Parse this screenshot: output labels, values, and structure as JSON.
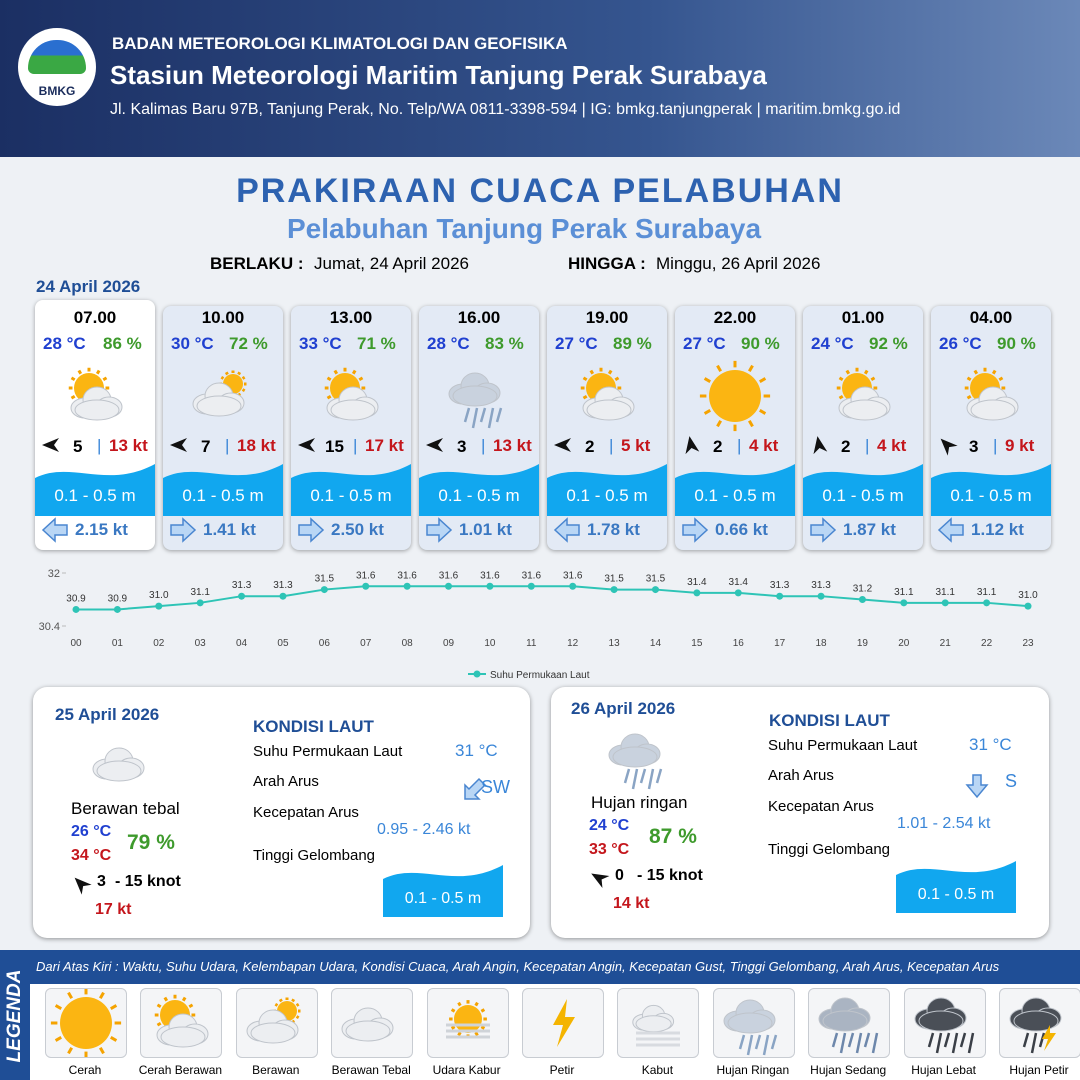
{
  "header": {
    "logo": "BMKG",
    "agency": "BADAN METEOROLOGI KLIMATOLOGI DAN GEOFISIKA",
    "station": "Stasiun Meteorologi Maritim Tanjung Perak Surabaya",
    "address": "Jl. Kalimas Baru 97B, Tanjung Perak, No. Telp/WA 0811-3398-594 | IG: bmkg.tanjungperak | maritim.bmkg.go.id"
  },
  "title": "PRAKIRAAN CUACA PELABUHAN",
  "subtitle": "Pelabuhan Tanjung Perak Surabaya",
  "validity": {
    "from_label": "BERLAKU :",
    "from": "Jumat, 24 April 2026",
    "to_label": "HINGGA :",
    "to": "Minggu, 26 April 2026"
  },
  "day1_date": "24 April 2026",
  "forecasts": [
    {
      "time": "07.00",
      "temp": "28 °C",
      "humidity": "86 %",
      "wind": 5,
      "gust": "13 kt",
      "wave": "0.1 - 0.5 m",
      "current": "2.15 kt"
    },
    {
      "time": "10.00",
      "temp": "30 °C",
      "humidity": "72 %",
      "wind": 7,
      "gust": "18 kt",
      "wave": "0.1 - 0.5 m",
      "current": "1.41 kt"
    },
    {
      "time": "13.00",
      "temp": "33 °C",
      "humidity": "71 %",
      "wind": 15,
      "gust": "17 kt",
      "wave": "0.1 - 0.5 m",
      "current": "2.50 kt"
    },
    {
      "time": "16.00",
      "temp": "28 °C",
      "humidity": "83 %",
      "wind": 3,
      "gust": "13 kt",
      "wave": "0.1 - 0.5 m",
      "current": "1.01 kt"
    },
    {
      "time": "19.00",
      "temp": "27 °C",
      "humidity": "89 %",
      "wind": 2,
      "gust": "5 kt",
      "wave": "0.1 - 0.5 m",
      "current": "1.78 kt"
    },
    {
      "time": "22.00",
      "temp": "27 °C",
      "humidity": "90 %",
      "wind": 2,
      "gust": "4 kt",
      "wave": "0.1 - 0.5 m",
      "current": "0.66 kt"
    },
    {
      "time": "01.00",
      "temp": "24 °C",
      "humidity": "92 %",
      "wind": 2,
      "gust": "4 kt",
      "wave": "0.1 - 0.5 m",
      "current": "1.87 kt"
    },
    {
      "time": "04.00",
      "temp": "26 °C",
      "humidity": "90 %",
      "wind": 3,
      "gust": "9 kt",
      "wave": "0.1 - 0.5 m",
      "current": "1.12 kt"
    }
  ],
  "chart_data": {
    "type": "line",
    "categories": [
      "00",
      "01",
      "02",
      "03",
      "04",
      "05",
      "06",
      "07",
      "08",
      "09",
      "10",
      "11",
      "12",
      "13",
      "14",
      "15",
      "16",
      "17",
      "18",
      "19",
      "20",
      "21",
      "22",
      "23"
    ],
    "series": [
      {
        "name": "Suhu Permukaan Laut",
        "color": "#2ec4b6",
        "values": [
          30.9,
          30.9,
          31.0,
          31.1,
          31.3,
          31.3,
          31.5,
          31.6,
          31.6,
          31.6,
          31.6,
          31.6,
          31.6,
          31.5,
          31.5,
          31.4,
          31.4,
          31.3,
          31.3,
          31.2,
          31.1,
          31.1,
          31.1,
          31.0
        ],
        "value_labels": [
          "30.9",
          "30.9",
          "31.0",
          "31.1",
          "31.3",
          "31.3",
          "31.5",
          "31.6",
          "31.6",
          "31.6",
          "31.6",
          "31.6",
          "31.6",
          "31.5",
          "31.5",
          "31.4",
          "31.4",
          "31.3",
          "31.3",
          "31.2",
          "31.1",
          "31.1",
          "31.1",
          "31.0"
        ]
      }
    ],
    "ylim": [
      30.4,
      32
    ],
    "yticks": [
      30.4,
      32
    ]
  },
  "days": [
    {
      "date": "25 April 2026",
      "condition": "Berawan tebal",
      "temp_min": "26 °C",
      "temp_max": "34 °C",
      "humidity": "79 %",
      "wind": 3,
      "wind_max": "- 15 knot",
      "gust": "17 kt",
      "sea_heading": "KONDISI LAUT",
      "sea_labels": [
        "Suhu Permukaan Laut",
        "Arah Arus",
        "Kecepatan Arus",
        "Tinggi Gelombang"
      ],
      "sst": "31 °C",
      "current_dir": "SW",
      "current_speed": "0.95 - 2.46 kt",
      "wave": "0.1 - 0.5 m"
    },
    {
      "date": "26 April 2026",
      "condition": "Hujan ringan",
      "temp_min": "24 °C",
      "temp_max": "33 °C",
      "humidity": "87 %",
      "wind": 0,
      "wind_max": "- 15 knot",
      "gust": "14 kt",
      "sea_heading": "KONDISI LAUT",
      "sea_labels": [
        "Suhu Permukaan Laut",
        "Arah Arus",
        "Kecepatan Arus",
        "Tinggi Gelombang"
      ],
      "sst": "31 °C",
      "current_dir": "S",
      "current_speed": "1.01 - 2.54 kt",
      "wave": "0.1 - 0.5 m"
    }
  ],
  "legend": {
    "title": "LEGENDA",
    "note": "Dari Atas Kiri : Waktu, Suhu Udara, Kelembapan Udara, Kondisi Cuaca, Arah Angin, Kecepatan Angin, Kecepatan Gust, Tinggi Gelombang, Arah Arus, Kecepatan Arus",
    "items": [
      "Cerah",
      "Cerah Berawan",
      "Berawan",
      "Berawan Tebal",
      "Udara Kabur",
      "Petir",
      "Kabut",
      "Hujan Ringan",
      "Hujan Sedang",
      "Hujan Lebat",
      "Hujan Petir"
    ]
  }
}
